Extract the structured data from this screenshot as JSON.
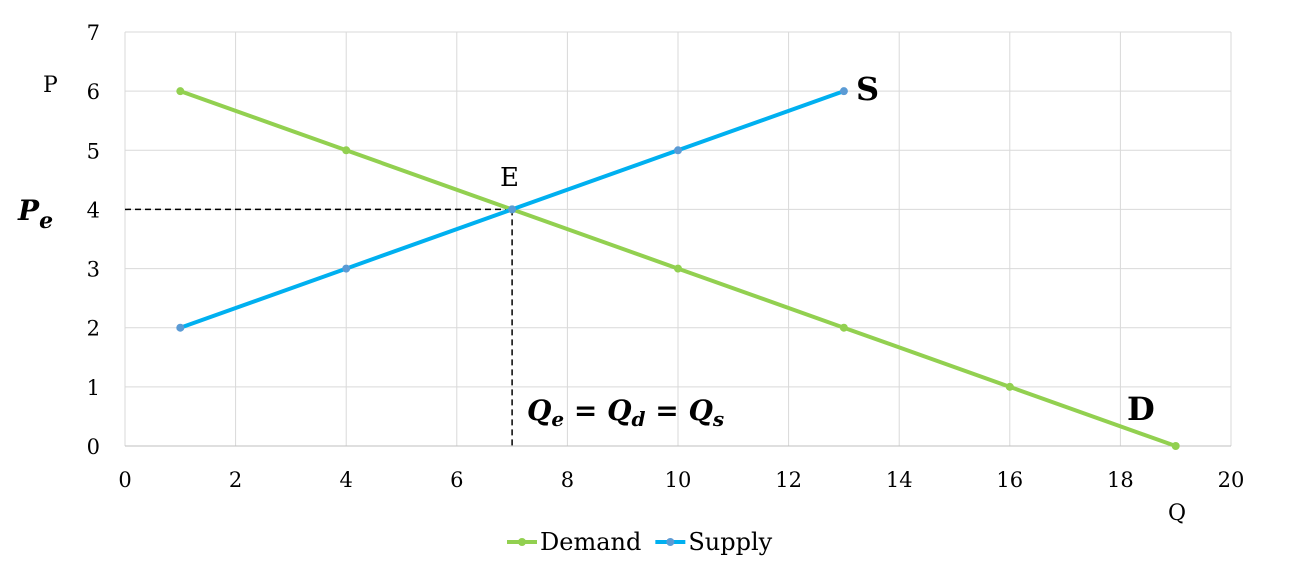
{
  "chart_data": {
    "type": "line",
    "xlabel": "Q",
    "ylabel": "P",
    "xlim": [
      0,
      20
    ],
    "ylim": [
      0,
      7
    ],
    "x_ticks": [
      0,
      2,
      4,
      6,
      8,
      10,
      12,
      14,
      16,
      18,
      20
    ],
    "y_ticks": [
      0,
      1,
      2,
      3,
      4,
      5,
      6,
      7
    ],
    "grid": true,
    "legend_position": "bottom",
    "series": [
      {
        "name": "Demand",
        "color": "#92d050",
        "points": [
          [
            1,
            6
          ],
          [
            4,
            5
          ],
          [
            7,
            4
          ],
          [
            10,
            3
          ],
          [
            13,
            2
          ],
          [
            16,
            1
          ],
          [
            19,
            0
          ]
        ],
        "end_label": "D"
      },
      {
        "name": "Supply",
        "color": "#00b0f0",
        "marker_color": "#5b9bd5",
        "points": [
          [
            1,
            2
          ],
          [
            4,
            3
          ],
          [
            7,
            4
          ],
          [
            10,
            5
          ],
          [
            13,
            6
          ]
        ],
        "end_label": "S"
      }
    ],
    "equilibrium": {
      "label": "E",
      "x": 7,
      "y": 4,
      "price_label": "Pe",
      "quantity_label": "Qe = Qd = Qs"
    }
  }
}
